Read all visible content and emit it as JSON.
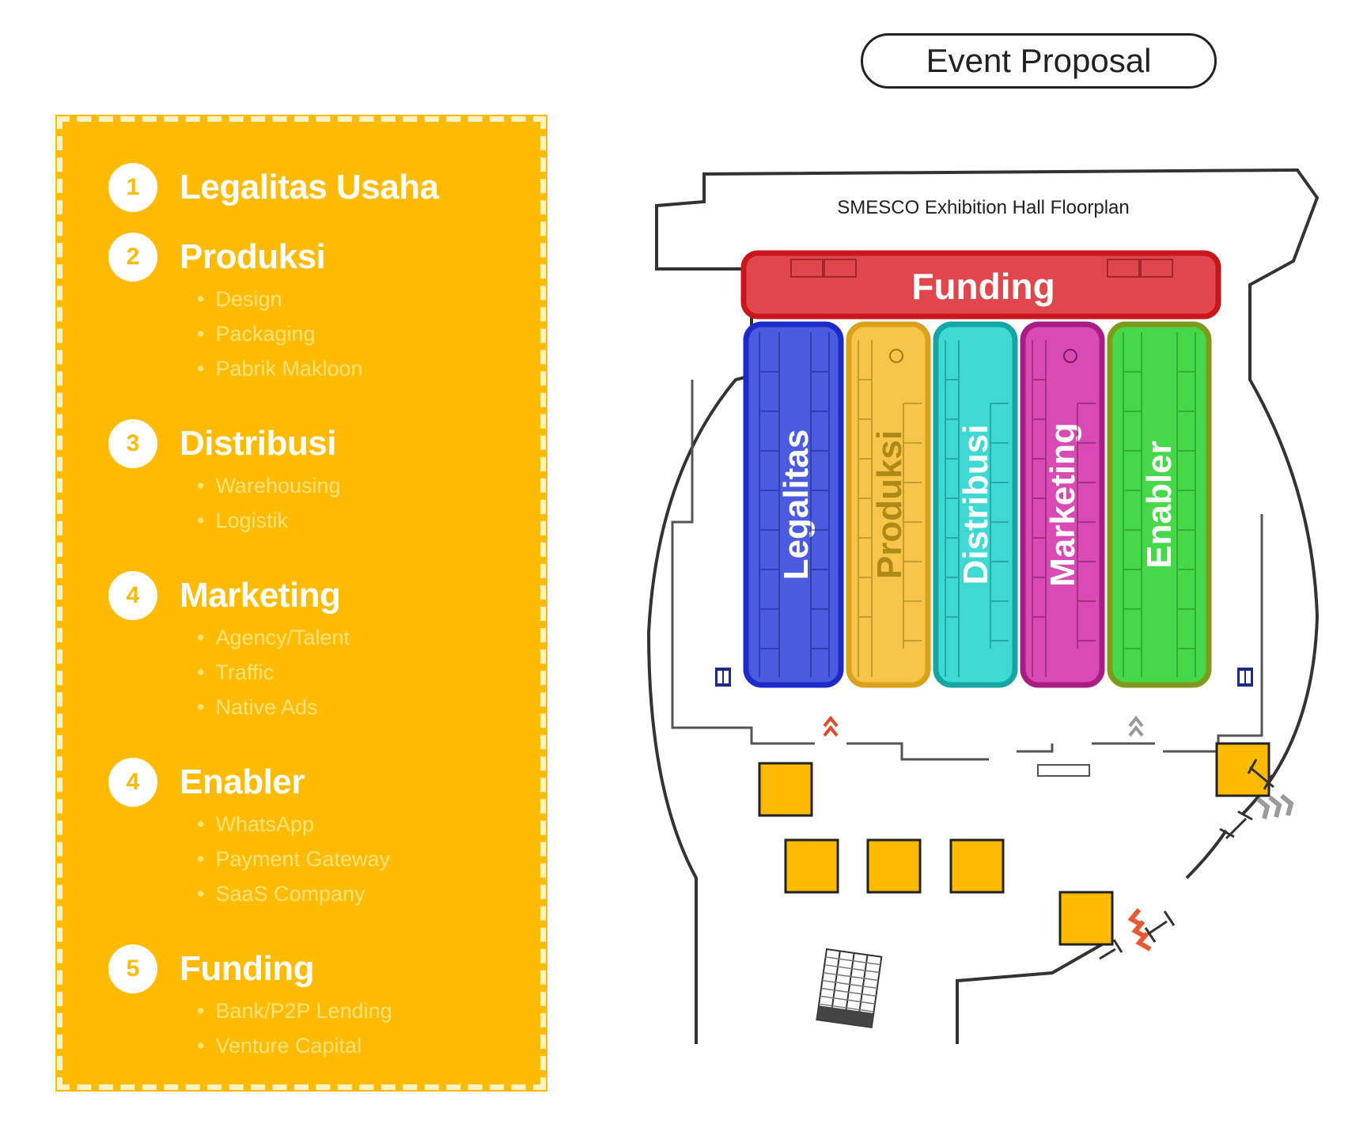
{
  "header": {
    "title": "Event Proposal"
  },
  "categories": [
    {
      "number": "1",
      "title": "Legalitas Usaha",
      "items": []
    },
    {
      "number": "2",
      "title": "Produksi",
      "items": [
        "Design",
        "Packaging",
        "Pabrik Makloon"
      ]
    },
    {
      "number": "3",
      "title": "Distribusi",
      "items": [
        "Warehousing",
        "Logistik"
      ]
    },
    {
      "number": "4",
      "title": "Marketing",
      "items": [
        "Agency/Talent",
        "Traffic",
        "Native Ads"
      ]
    },
    {
      "number": "4",
      "title": "Enabler",
      "items": [
        "WhatsApp",
        "Payment Gateway",
        "SaaS Company"
      ]
    },
    {
      "number": "5",
      "title": "Funding",
      "items": [
        "Bank/P2P Lending",
        "Venture Capital"
      ]
    }
  ],
  "floorplan": {
    "title": "SMESCO Exhibition Hall Floorplan",
    "zones": [
      {
        "label": "Funding",
        "color": "#e0474c",
        "border": "#c8161c"
      },
      {
        "label": "Legalitas",
        "color": "#4a5be0",
        "border": "#1c2bc8"
      },
      {
        "label": "Produksi",
        "color": "#f7c54a",
        "border": "#d9a21a"
      },
      {
        "label": "Distribusi",
        "color": "#3fd9d4",
        "border": "#14a6a3"
      },
      {
        "label": "Marketing",
        "color": "#d94ab4",
        "border": "#a81d83"
      },
      {
        "label": "Enabler",
        "color": "#45d94a",
        "border": "#7f9a1a"
      }
    ],
    "booth_color": "#ffbb00"
  }
}
